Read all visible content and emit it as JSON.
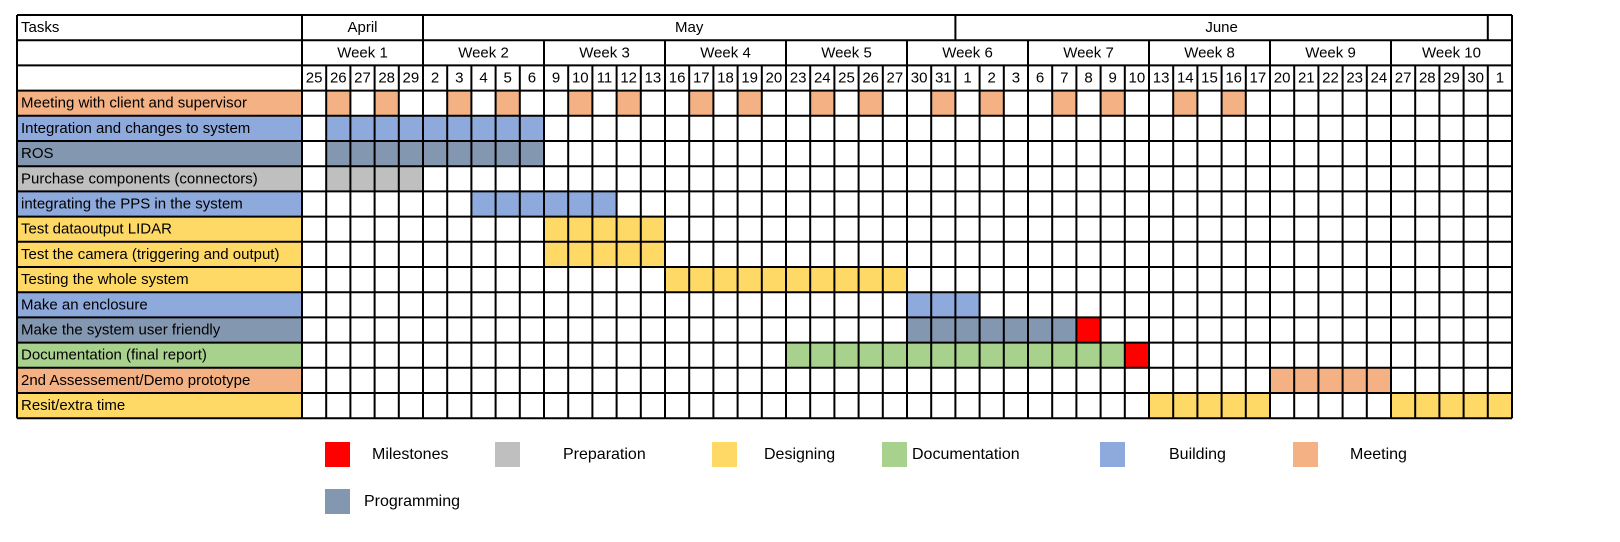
{
  "chart_data": {
    "type": "gantt",
    "header_label": "Tasks",
    "months": [
      {
        "label": "April",
        "start_col": 0,
        "span": 5
      },
      {
        "label": "May",
        "start_col": 5,
        "span": 22
      },
      {
        "label": "June",
        "start_col": 27,
        "span": 22
      }
    ],
    "weeks": [
      {
        "label": "Week 1",
        "start_col": 0,
        "span": 5
      },
      {
        "label": "Week 2",
        "start_col": 5,
        "span": 5
      },
      {
        "label": "Week 3",
        "start_col": 10,
        "span": 5
      },
      {
        "label": "Week 4",
        "start_col": 15,
        "span": 5
      },
      {
        "label": "Week 5",
        "start_col": 20,
        "span": 5
      },
      {
        "label": "Week 6",
        "start_col": 25,
        "span": 5
      },
      {
        "label": "Week 7",
        "start_col": 30,
        "span": 5
      },
      {
        "label": "Week 8",
        "start_col": 35,
        "span": 5
      },
      {
        "label": "Week 9",
        "start_col": 40,
        "span": 5
      },
      {
        "label": "Week 10",
        "start_col": 45,
        "span": 5
      }
    ],
    "days": [
      "25",
      "26",
      "27",
      "28",
      "29",
      "2",
      "3",
      "4",
      "5",
      "6",
      "9",
      "10",
      "11",
      "12",
      "13",
      "16",
      "17",
      "18",
      "19",
      "20",
      "23",
      "24",
      "25",
      "26",
      "27",
      "30",
      "31",
      "1",
      "2",
      "3",
      "6",
      "7",
      "8",
      "9",
      "10",
      "13",
      "14",
      "15",
      "16",
      "17",
      "20",
      "21",
      "22",
      "23",
      "24",
      "27",
      "28",
      "29",
      "30",
      "1"
    ],
    "categories": {
      "milestone": {
        "label": "Milestones",
        "color": "#FF0000"
      },
      "preparation": {
        "label": "Preparation",
        "color": "#BFBFBF"
      },
      "designing": {
        "label": "Designing",
        "color": "#FFD966"
      },
      "documentation": {
        "label": "Documentation",
        "color": "#A9D18E"
      },
      "building": {
        "label": "Building",
        "color": "#8EA9DB"
      },
      "meeting": {
        "label": "Meeting",
        "color": "#F4B183"
      },
      "programming": {
        "label": "Programming",
        "color": "#8497B0"
      }
    },
    "legend_order": [
      "milestone",
      "preparation",
      "designing",
      "documentation",
      "building",
      "meeting",
      "programming"
    ],
    "tasks": [
      {
        "name": "Meeting with client and supervisor",
        "category": "meeting",
        "spans": [
          [
            1,
            1
          ],
          [
            3,
            3
          ],
          [
            6,
            6
          ],
          [
            8,
            8
          ],
          [
            11,
            11
          ],
          [
            13,
            13
          ],
          [
            16,
            16
          ],
          [
            18,
            18
          ],
          [
            21,
            21
          ],
          [
            23,
            23
          ],
          [
            26,
            26
          ],
          [
            28,
            28
          ],
          [
            31,
            31
          ],
          [
            33,
            33
          ],
          [
            36,
            36
          ],
          [
            38,
            38
          ]
        ]
      },
      {
        "name": "Integration and changes to system",
        "category": "building",
        "spans": [
          [
            1,
            9
          ]
        ]
      },
      {
        "name": "ROS",
        "category": "programming",
        "spans": [
          [
            1,
            9
          ]
        ]
      },
      {
        "name": "Purchase components (connectors)",
        "category": "preparation",
        "spans": [
          [
            1,
            4
          ]
        ]
      },
      {
        "name": "integrating the PPS in the system",
        "category": "building",
        "spans": [
          [
            7,
            12
          ]
        ]
      },
      {
        "name": "Test dataoutput LIDAR",
        "category": "designing",
        "spans": [
          [
            10,
            14
          ]
        ]
      },
      {
        "name": "Test the camera (triggering and output)",
        "category": "designing",
        "spans": [
          [
            10,
            14
          ]
        ]
      },
      {
        "name": "Testing the whole system",
        "category": "designing",
        "spans": [
          [
            15,
            24
          ]
        ]
      },
      {
        "name": "Make an enclosure",
        "category": "building",
        "spans": [
          [
            25,
            27
          ]
        ]
      },
      {
        "name": "Make the system user friendly",
        "category": "programming",
        "spans": [
          [
            25,
            31
          ]
        ],
        "milestones": [
          32
        ]
      },
      {
        "name": "Documentation (final report)",
        "category": "documentation",
        "spans": [
          [
            20,
            33
          ]
        ],
        "milestones": [
          34
        ]
      },
      {
        "name": "2nd Assessement/Demo prototype",
        "category": "meeting",
        "spans": [
          [
            40,
            44
          ]
        ]
      },
      {
        "name": "Resit/extra time",
        "category": "designing",
        "spans": [
          [
            35,
            39
          ],
          [
            45,
            49
          ]
        ]
      }
    ]
  }
}
